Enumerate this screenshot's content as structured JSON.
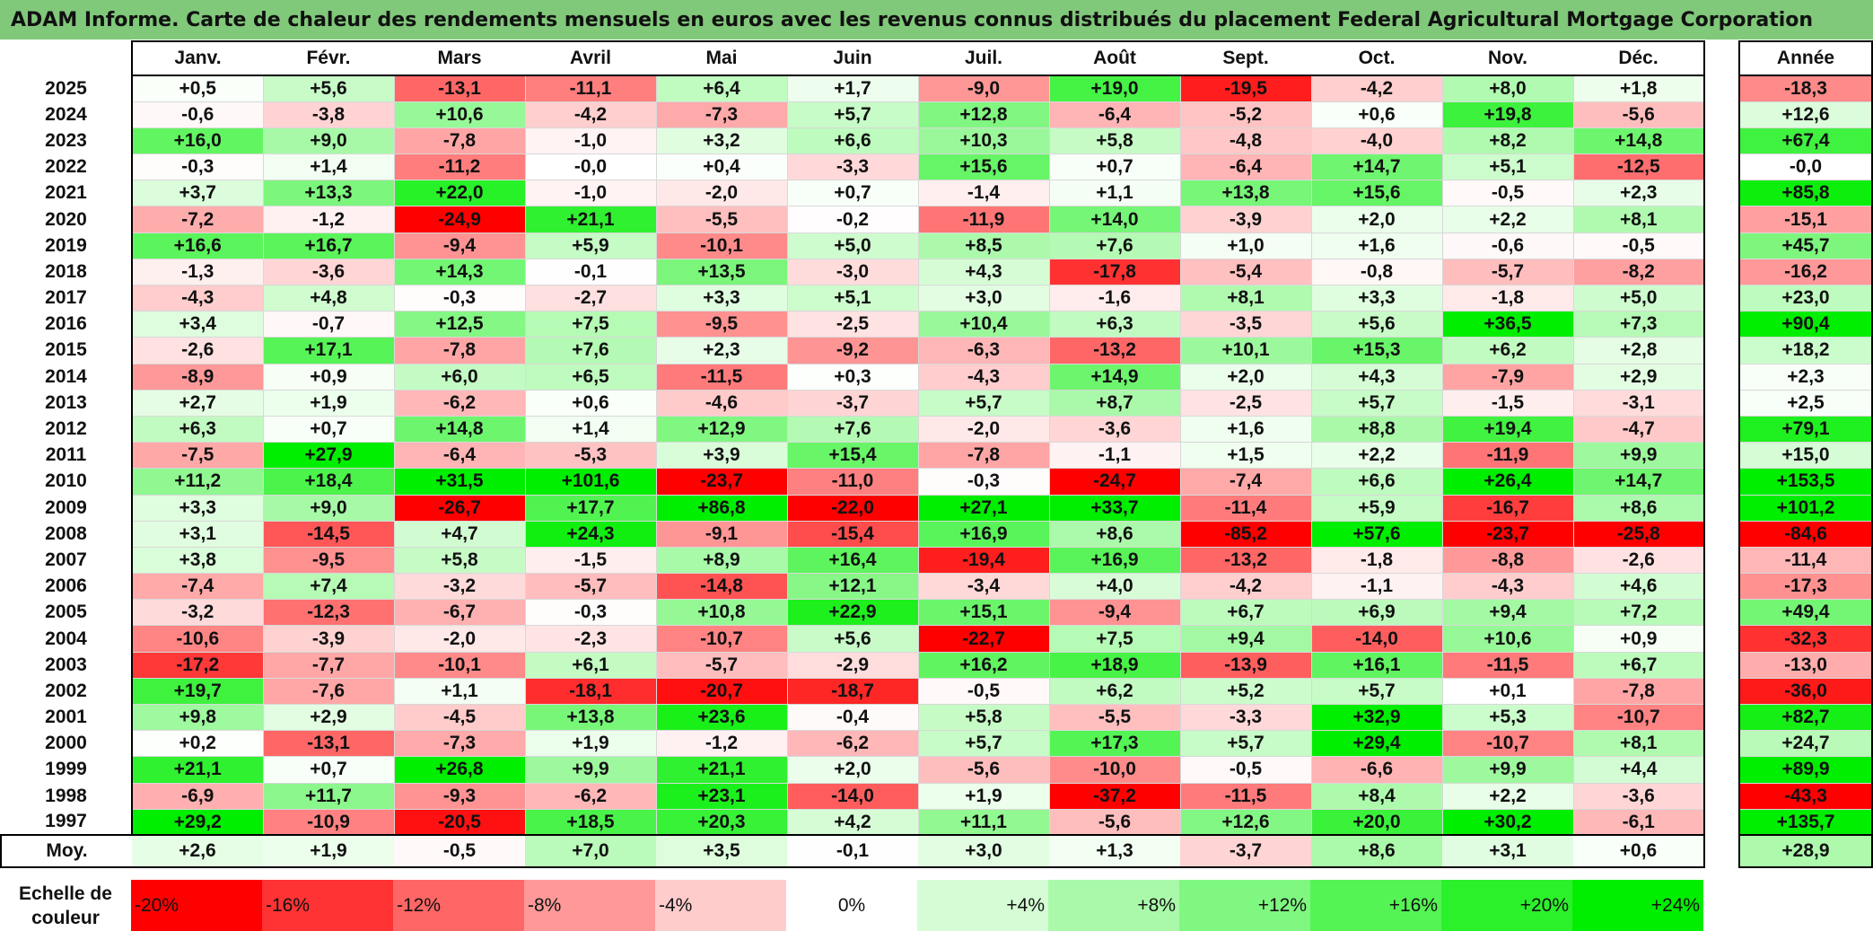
{
  "title": "ADAM Informe. Carte de chaleur des rendements mensuels en euros avec les revenus connus distribués du placement Federal Agricultural Mortgage Corporation",
  "colors": {
    "title_bg": "#80c87a",
    "negative": "#ff0000",
    "positive": "#00ee00",
    "neutral": "#ffffff"
  },
  "chart_data": {
    "type": "heatmap",
    "title": "ADAM Informe. Carte de chaleur des rendements mensuels en euros avec les revenus connus distribués du placement Federal Agricultural Mortgage Corporation",
    "months": [
      "Janv.",
      "Févr.",
      "Mars",
      "Avril",
      "Mai",
      "Juin",
      "Juil.",
      "Août",
      "Sept.",
      "Oct.",
      "Nov.",
      "Déc."
    ],
    "annual_header": "Année",
    "average_label": "Moy.",
    "rows": [
      {
        "year": "2025",
        "values": [
          "+0,5",
          "+5,6",
          "-13,1",
          "-11,1",
          "+6,4",
          "+1,7",
          "-9,0",
          "+19,0",
          "-19,5",
          "-4,2",
          "+8,0",
          "+1,8"
        ],
        "annual": "-18,3"
      },
      {
        "year": "2024",
        "values": [
          "-0,6",
          "-3,8",
          "+10,6",
          "-4,2",
          "-7,3",
          "+5,7",
          "+12,8",
          "-6,4",
          "-5,2",
          "+0,6",
          "+19,8",
          "-5,6"
        ],
        "annual": "+12,6"
      },
      {
        "year": "2023",
        "values": [
          "+16,0",
          "+9,0",
          "-7,8",
          "-1,0",
          "+3,2",
          "+6,6",
          "+10,3",
          "+5,8",
          "-4,8",
          "-4,0",
          "+8,2",
          "+14,8"
        ],
        "annual": "+67,4"
      },
      {
        "year": "2022",
        "values": [
          "-0,3",
          "+1,4",
          "-11,2",
          "-0,0",
          "+0,4",
          "-3,3",
          "+15,6",
          "+0,7",
          "-6,4",
          "+14,7",
          "+5,1",
          "-12,5"
        ],
        "annual": "-0,0"
      },
      {
        "year": "2021",
        "values": [
          "+3,7",
          "+13,3",
          "+22,0",
          "-1,0",
          "-2,0",
          "+0,7",
          "-1,4",
          "+1,1",
          "+13,8",
          "+15,6",
          "-0,5",
          "+2,3"
        ],
        "annual": "+85,8"
      },
      {
        "year": "2020",
        "values": [
          "-7,2",
          "-1,2",
          "-24,9",
          "+21,1",
          "-5,5",
          "-0,2",
          "-11,9",
          "+14,0",
          "-3,9",
          "+2,0",
          "+2,2",
          "+8,1"
        ],
        "annual": "-15,1"
      },
      {
        "year": "2019",
        "values": [
          "+16,6",
          "+16,7",
          "-9,4",
          "+5,9",
          "-10,1",
          "+5,0",
          "+8,5",
          "+7,6",
          "+1,0",
          "+1,6",
          "-0,6",
          "-0,5"
        ],
        "annual": "+45,7"
      },
      {
        "year": "2018",
        "values": [
          "-1,3",
          "-3,6",
          "+14,3",
          "-0,1",
          "+13,5",
          "-3,0",
          "+4,3",
          "-17,8",
          "-5,4",
          "-0,8",
          "-5,7",
          "-8,2"
        ],
        "annual": "-16,2"
      },
      {
        "year": "2017",
        "values": [
          "-4,3",
          "+4,8",
          "-0,3",
          "-2,7",
          "+3,3",
          "+5,1",
          "+3,0",
          "-1,6",
          "+8,1",
          "+3,3",
          "-1,8",
          "+5,0"
        ],
        "annual": "+23,0"
      },
      {
        "year": "2016",
        "values": [
          "+3,4",
          "-0,7",
          "+12,5",
          "+7,5",
          "-9,5",
          "-2,5",
          "+10,4",
          "+6,3",
          "-3,5",
          "+5,6",
          "+36,5",
          "+7,3"
        ],
        "annual": "+90,4"
      },
      {
        "year": "2015",
        "values": [
          "-2,6",
          "+17,1",
          "-7,8",
          "+7,6",
          "+2,3",
          "-9,2",
          "-6,3",
          "-13,2",
          "+10,1",
          "+15,3",
          "+6,2",
          "+2,8"
        ],
        "annual": "+18,2"
      },
      {
        "year": "2014",
        "values": [
          "-8,9",
          "+0,9",
          "+6,0",
          "+6,5",
          "-11,5",
          "+0,3",
          "-4,3",
          "+14,9",
          "+2,0",
          "+4,3",
          "-7,9",
          "+2,9"
        ],
        "annual": "+2,3"
      },
      {
        "year": "2013",
        "values": [
          "+2,7",
          "+1,9",
          "-6,2",
          "+0,6",
          "-4,6",
          "-3,7",
          "+5,7",
          "+8,7",
          "-2,5",
          "+5,7",
          "-1,5",
          "-3,1"
        ],
        "annual": "+2,5"
      },
      {
        "year": "2012",
        "values": [
          "+6,3",
          "+0,7",
          "+14,8",
          "+1,4",
          "+12,9",
          "+7,6",
          "-2,0",
          "-3,6",
          "+1,6",
          "+8,8",
          "+19,4",
          "-4,7"
        ],
        "annual": "+79,1"
      },
      {
        "year": "2011",
        "values": [
          "-7,5",
          "+27,9",
          "-6,4",
          "-5,3",
          "+3,9",
          "+15,4",
          "-7,8",
          "-1,1",
          "+1,5",
          "+2,2",
          "-11,9",
          "+9,9"
        ],
        "annual": "+15,0"
      },
      {
        "year": "2010",
        "values": [
          "+11,2",
          "+18,4",
          "+31,5",
          "+101,6",
          "-23,7",
          "-11,0",
          "-0,3",
          "-24,7",
          "-7,4",
          "+6,6",
          "+26,4",
          "+14,7"
        ],
        "annual": "+153,5"
      },
      {
        "year": "2009",
        "values": [
          "+3,3",
          "+9,0",
          "-26,7",
          "+17,7",
          "+86,8",
          "-22,0",
          "+27,1",
          "+33,7",
          "-11,4",
          "+5,9",
          "-16,7",
          "+8,6"
        ],
        "annual": "+101,2"
      },
      {
        "year": "2008",
        "values": [
          "+3,1",
          "-14,5",
          "+4,7",
          "+24,3",
          "-9,1",
          "-15,4",
          "+16,9",
          "+8,6",
          "-85,2",
          "+57,6",
          "-23,7",
          "-25,8"
        ],
        "annual": "-84,6"
      },
      {
        "year": "2007",
        "values": [
          "+3,8",
          "-9,5",
          "+5,8",
          "-1,5",
          "+8,9",
          "+16,4",
          "-19,4",
          "+16,9",
          "-13,2",
          "-1,8",
          "-8,8",
          "-2,6"
        ],
        "annual": "-11,4"
      },
      {
        "year": "2006",
        "values": [
          "-7,4",
          "+7,4",
          "-3,2",
          "-5,7",
          "-14,8",
          "+12,1",
          "-3,4",
          "+4,0",
          "-4,2",
          "-1,1",
          "-4,3",
          "+4,6"
        ],
        "annual": "-17,3"
      },
      {
        "year": "2005",
        "values": [
          "-3,2",
          "-12,3",
          "-6,7",
          "-0,3",
          "+10,8",
          "+22,9",
          "+15,1",
          "-9,4",
          "+6,7",
          "+6,9",
          "+9,4",
          "+7,2"
        ],
        "annual": "+49,4"
      },
      {
        "year": "2004",
        "values": [
          "-10,6",
          "-3,9",
          "-2,0",
          "-2,3",
          "-10,7",
          "+5,6",
          "-22,7",
          "+7,5",
          "+9,4",
          "-14,0",
          "+10,6",
          "+0,9"
        ],
        "annual": "-32,3"
      },
      {
        "year": "2003",
        "values": [
          "-17,2",
          "-7,7",
          "-10,1",
          "+6,1",
          "-5,7",
          "-2,9",
          "+16,2",
          "+18,9",
          "-13,9",
          "+16,1",
          "-11,5",
          "+6,7"
        ],
        "annual": "-13,0"
      },
      {
        "year": "2002",
        "values": [
          "+19,7",
          "-7,6",
          "+1,1",
          "-18,1",
          "-20,7",
          "-18,7",
          "-0,5",
          "+6,2",
          "+5,2",
          "+5,7",
          "+0,1",
          "-7,8"
        ],
        "annual": "-36,0"
      },
      {
        "year": "2001",
        "values": [
          "+9,8",
          "+2,9",
          "-4,5",
          "+13,8",
          "+23,6",
          "-0,4",
          "+5,8",
          "-5,5",
          "-3,3",
          "+32,9",
          "+5,3",
          "-10,7"
        ],
        "annual": "+82,7"
      },
      {
        "year": "2000",
        "values": [
          "+0,2",
          "-13,1",
          "-7,3",
          "+1,9",
          "-1,2",
          "-6,2",
          "+5,7",
          "+17,3",
          "+5,7",
          "+29,4",
          "-10,7",
          "+8,1"
        ],
        "annual": "+24,7"
      },
      {
        "year": "1999",
        "values": [
          "+21,1",
          "+0,7",
          "+26,8",
          "+9,9",
          "+21,1",
          "+2,0",
          "-5,6",
          "-10,0",
          "-0,5",
          "-6,6",
          "+9,9",
          "+4,4"
        ],
        "annual": "+89,9"
      },
      {
        "year": "1998",
        "values": [
          "-6,9",
          "+11,7",
          "-9,3",
          "-6,2",
          "+23,1",
          "-14,0",
          "+1,9",
          "-37,2",
          "-11,5",
          "+8,4",
          "+2,2",
          "-3,6"
        ],
        "annual": "-43,3"
      },
      {
        "year": "1997",
        "values": [
          "+29,2",
          "-10,9",
          "-20,5",
          "+18,5",
          "+20,3",
          "+4,2",
          "+11,1",
          "-5,6",
          "+12,6",
          "+20,0",
          "+30,2",
          "-6,1"
        ],
        "annual": "+135,7"
      }
    ],
    "averages": [
      "+2,6",
      "+1,9",
      "-0,5",
      "+7,0",
      "+3,5",
      "-0,1",
      "+3,0",
      "+1,3",
      "-3,7",
      "+8,6",
      "+3,1",
      "+0,6"
    ],
    "annual_average": "+28,9",
    "scale_label_1": "Echelle de",
    "scale_label_2": "couleur",
    "scale": [
      "-20%",
      "-16%",
      "-12%",
      "-8%",
      "-4%",
      "0%",
      "+4%",
      "+8%",
      "+12%",
      "+16%",
      "+20%",
      "+24%"
    ],
    "scale_values": [
      -20,
      -16,
      -12,
      -8,
      -4,
      0,
      4,
      8,
      12,
      16,
      20,
      24
    ]
  }
}
